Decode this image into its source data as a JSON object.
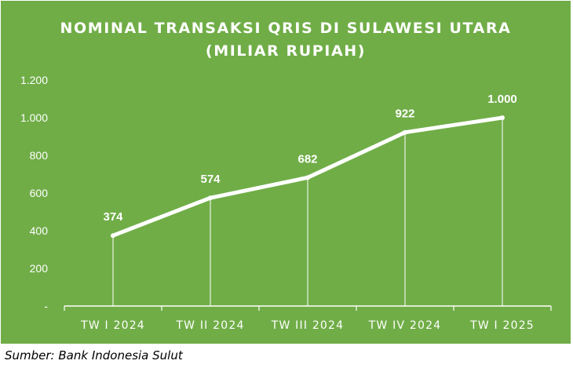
{
  "title_line1": "NOMINAL TRANSAKSI QRIS DI SULAWESI UTARA",
  "title_line2": "(MILIAR RUPIAH)",
  "source": "Sumber: Bank Indonesia Sulut",
  "colors": {
    "background": "#70ad47",
    "line": "#ffffff",
    "text": "#ffffff"
  },
  "chart_data": {
    "type": "line",
    "title": "NOMINAL TRANSAKSI QRIS DI SULAWESI UTARA (MILIAR RUPIAH)",
    "categories": [
      "TW I 2024",
      "TW II 2024",
      "TW III 2024",
      "TW IV 2024",
      "TW I 2025"
    ],
    "series": [
      {
        "values": [
          374,
          574,
          682,
          922,
          1000
        ],
        "labels": [
          "374",
          "574",
          "682",
          "922",
          "1.000"
        ]
      }
    ],
    "ylim": [
      0,
      1200
    ],
    "yticks": [
      {
        "value": 0,
        "label": "-"
      },
      {
        "value": 200,
        "label": "200"
      },
      {
        "value": 400,
        "label": "400"
      },
      {
        "value": 600,
        "label": "600"
      },
      {
        "value": 800,
        "label": "800"
      },
      {
        "value": 1000,
        "label": "1.000"
      },
      {
        "value": 1200,
        "label": "1.200"
      }
    ],
    "drop_lines": true,
    "grid": false,
    "legend": "none"
  }
}
